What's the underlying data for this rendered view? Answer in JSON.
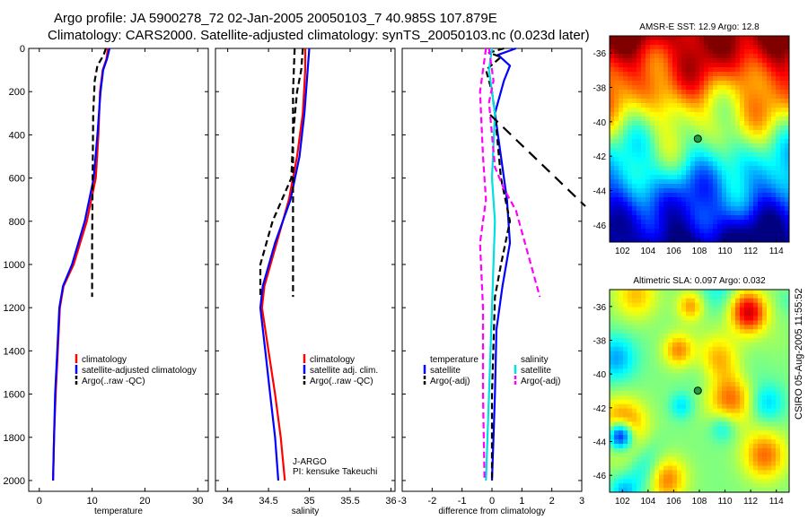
{
  "page": {
    "title_line_1": "Argo profile: JA 5900278_72 02-Jan-2005 20050103_7 40.985S 107.879E",
    "title_line_2": "Climatology: CARS2000. Satellite-adjusted climatology: synTS_20050103.nc (0.023d later)",
    "side_stamp": "CSIRO 05-Aug-2005 11:55:52"
  },
  "colors": {
    "climatology": "#ff0000",
    "satellite": "#0000ff",
    "argo": "#000000",
    "sal_sat": "#00e0e0",
    "sal_argo": "#ff00ff"
  },
  "chart_data": [
    {
      "type": "line",
      "name": "temperature-profile",
      "xlabel": "temperature",
      "ylabel": "",
      "xlim": [
        -2,
        32
      ],
      "ylim": [
        2050,
        0
      ],
      "x_ticks": [
        0,
        10,
        20,
        30
      ],
      "y_ticks": [
        0,
        200,
        400,
        600,
        800,
        1000,
        1200,
        1400,
        1600,
        1800,
        2000
      ],
      "legend": [
        "climatology",
        "satellite-adjusted climatology",
        "Argo(..raw -QC)"
      ],
      "series": [
        {
          "name": "climatology",
          "style": "solid",
          "color_key": "climatology",
          "points": [
            [
              13.0,
              0
            ],
            [
              12.7,
              50
            ],
            [
              12.0,
              100
            ],
            [
              11.5,
              200
            ],
            [
              11.2,
              400
            ],
            [
              10.7,
              600
            ],
            [
              9.0,
              800
            ],
            [
              6.5,
              1000
            ],
            [
              4.6,
              1100
            ],
            [
              3.9,
              1200
            ],
            [
              3.5,
              1400
            ],
            [
              3.1,
              1600
            ],
            [
              2.8,
              1800
            ],
            [
              2.6,
              2000
            ]
          ]
        },
        {
          "name": "satellite-adjusted climatology",
          "style": "solid",
          "color_key": "satellite",
          "points": [
            [
              13.3,
              0
            ],
            [
              12.8,
              50
            ],
            [
              12.1,
              100
            ],
            [
              11.6,
              200
            ],
            [
              11.0,
              400
            ],
            [
              10.3,
              600
            ],
            [
              8.6,
              800
            ],
            [
              6.2,
              1000
            ],
            [
              4.5,
              1100
            ],
            [
              3.8,
              1200
            ],
            [
              3.4,
              1400
            ],
            [
              3.0,
              1600
            ],
            [
              2.8,
              1800
            ],
            [
              2.6,
              2000
            ]
          ]
        },
        {
          "name": "Argo(..raw -QC)",
          "style": "dashed",
          "color_key": "argo",
          "points": [
            [
              12.6,
              0
            ],
            [
              12.2,
              30
            ],
            [
              11.0,
              80
            ],
            [
              10.5,
              150
            ],
            [
              10.2,
              300
            ],
            [
              10.1,
              600
            ],
            [
              10.0,
              900
            ],
            [
              10.0,
              1150
            ]
          ]
        }
      ]
    },
    {
      "type": "line",
      "name": "salinity-profile",
      "xlabel": "salinity",
      "ylabel": "",
      "xlim": [
        33.85,
        36.05
      ],
      "ylim": [
        2050,
        0
      ],
      "x_ticks": [
        34,
        34.5,
        35,
        35.5,
        36
      ],
      "legend": [
        "climatology",
        "satellite adj. clim.",
        "Argo(..raw -QC)"
      ],
      "annotations": [
        "J-ARGO",
        "PI: kensuke Takeuchi"
      ],
      "series": [
        {
          "name": "climatology",
          "style": "solid",
          "color_key": "climatology",
          "points": [
            [
              34.95,
              0
            ],
            [
              34.95,
              100
            ],
            [
              34.92,
              300
            ],
            [
              34.85,
              500
            ],
            [
              34.75,
              700
            ],
            [
              34.6,
              900
            ],
            [
              34.45,
              1100
            ],
            [
              34.42,
              1200
            ],
            [
              34.5,
              1400
            ],
            [
              34.58,
              1600
            ],
            [
              34.65,
              1800
            ],
            [
              34.7,
              2000
            ]
          ]
        },
        {
          "name": "satellite adj. clim.",
          "style": "solid",
          "color_key": "satellite",
          "points": [
            [
              35.0,
              0
            ],
            [
              34.98,
              100
            ],
            [
              34.94,
              300
            ],
            [
              34.88,
              500
            ],
            [
              34.77,
              700
            ],
            [
              34.58,
              900
            ],
            [
              34.43,
              1100
            ],
            [
              34.4,
              1200
            ],
            [
              34.46,
              1400
            ],
            [
              34.52,
              1600
            ],
            [
              34.58,
              1800
            ],
            [
              34.62,
              2000
            ]
          ]
        },
        {
          "name": "Argo(..raw -QC)",
          "style": "dashed",
          "color_key": "argo",
          "points": [
            [
              34.92,
              0
            ],
            [
              34.9,
              100
            ],
            [
              34.85,
              200
            ],
            [
              34.8,
              400
            ],
            [
              34.78,
              600
            ],
            [
              34.55,
              800
            ],
            [
              34.4,
              1000
            ],
            [
              34.4,
              1150
            ]
          ]
        },
        {
          "name": "Argo(..raw -QC) deep",
          "style": "dashed",
          "color_key": "argo",
          "points": [
            [
              34.82,
              0
            ],
            [
              34.8,
              200
            ],
            [
              34.8,
              600
            ],
            [
              34.8,
              1000
            ],
            [
              34.8,
              1150
            ]
          ]
        }
      ]
    },
    {
      "type": "line",
      "name": "difference-profile",
      "xlabel": "difference from climatology",
      "ylabel": "",
      "xlim": [
        -3,
        3
      ],
      "ylim": [
        2050,
        0
      ],
      "x_ticks": [
        -3,
        -2,
        -1,
        0,
        1,
        2,
        3
      ],
      "legend_temperature_header": "temperature",
      "legend_salinity_header": "salinity",
      "legend": [
        "satellite",
        "Argo(-adj)",
        "satellite",
        "Argo(-adj)"
      ],
      "series": [
        {
          "name": "temperature satellite",
          "style": "solid",
          "color_key": "satellite",
          "points": [
            [
              0.8,
              0
            ],
            [
              0.2,
              30
            ],
            [
              0.6,
              80
            ],
            [
              0.4,
              150
            ],
            [
              0.1,
              300
            ],
            [
              0.3,
              500
            ],
            [
              0.5,
              700
            ],
            [
              0.6,
              900
            ],
            [
              0.35,
              1100
            ],
            [
              0.15,
              1300
            ],
            [
              0.1,
              1600
            ],
            [
              0.05,
              1800
            ],
            [
              0.0,
              2000
            ]
          ]
        },
        {
          "name": "temperature Argo(-adj)",
          "style": "dashed",
          "color_key": "argo",
          "points": [
            [
              0.4,
              0
            ],
            [
              -0.1,
              20
            ],
            [
              0.3,
              40
            ],
            [
              -0.2,
              100
            ],
            [
              0.0,
              200
            ],
            [
              0.1,
              300
            ],
            [
              0.3,
              600
            ],
            [
              0.6,
              800
            ],
            [
              0.3,
              1000
            ],
            [
              0.1,
              1150
            ],
            [
              0.0,
              1600
            ],
            [
              0.0,
              2000
            ]
          ]
        },
        {
          "name": "salinity satellite",
          "style": "solid",
          "color_key": "sal_sat",
          "points": [
            [
              0.0,
              0
            ],
            [
              -0.1,
              100
            ],
            [
              0.1,
              300
            ],
            [
              0.0,
              600
            ],
            [
              0.1,
              800
            ],
            [
              0.0,
              1200
            ],
            [
              -0.1,
              1600
            ],
            [
              -0.2,
              2000
            ]
          ]
        },
        {
          "name": "salinity Argo(-adj)",
          "style": "dashed",
          "color_key": "sal_argo",
          "points": [
            [
              -0.1,
              0
            ],
            [
              0.05,
              150
            ],
            [
              -0.1,
              250
            ],
            [
              0.0,
              400
            ],
            [
              0.1,
              550
            ],
            [
              0.4,
              650
            ],
            [
              0.8,
              750
            ],
            [
              1.6,
              1150
            ]
          ]
        },
        {
          "name": "salinity Argo(-adj) left",
          "style": "dashed",
          "color_key": "sal_argo",
          "points": [
            [
              -0.2,
              0
            ],
            [
              -0.4,
              200
            ],
            [
              -0.3,
              500
            ],
            [
              -0.2,
              700
            ],
            [
              -0.4,
              900
            ],
            [
              -0.3,
              1200
            ],
            [
              -0.3,
              1600
            ],
            [
              -0.25,
              2000
            ]
          ]
        }
      ]
    },
    {
      "type": "heatmap",
      "name": "sst-map",
      "title": "AMSR-E SST: 12.9 Argo: 12.8",
      "xlim": [
        101,
        115
      ],
      "ylim": [
        -47,
        -35
      ],
      "x_ticks": [
        102,
        104,
        106,
        108,
        110,
        112,
        114
      ],
      "y_ticks": [
        -36,
        -38,
        -40,
        -42,
        -44,
        -46
      ],
      "marker": {
        "lon": 107.879,
        "lat": -40.985
      }
    },
    {
      "type": "heatmap",
      "name": "sla-map",
      "title": "Altimetric SLA: 0.097 Argo: 0.032",
      "xlim": [
        101,
        115
      ],
      "ylim": [
        -47,
        -35
      ],
      "x_ticks": [
        102,
        104,
        106,
        108,
        110,
        112,
        114
      ],
      "y_ticks": [
        -36,
        -38,
        -40,
        -42,
        -44,
        -46
      ],
      "marker": {
        "lon": 107.879,
        "lat": -40.985
      }
    }
  ]
}
